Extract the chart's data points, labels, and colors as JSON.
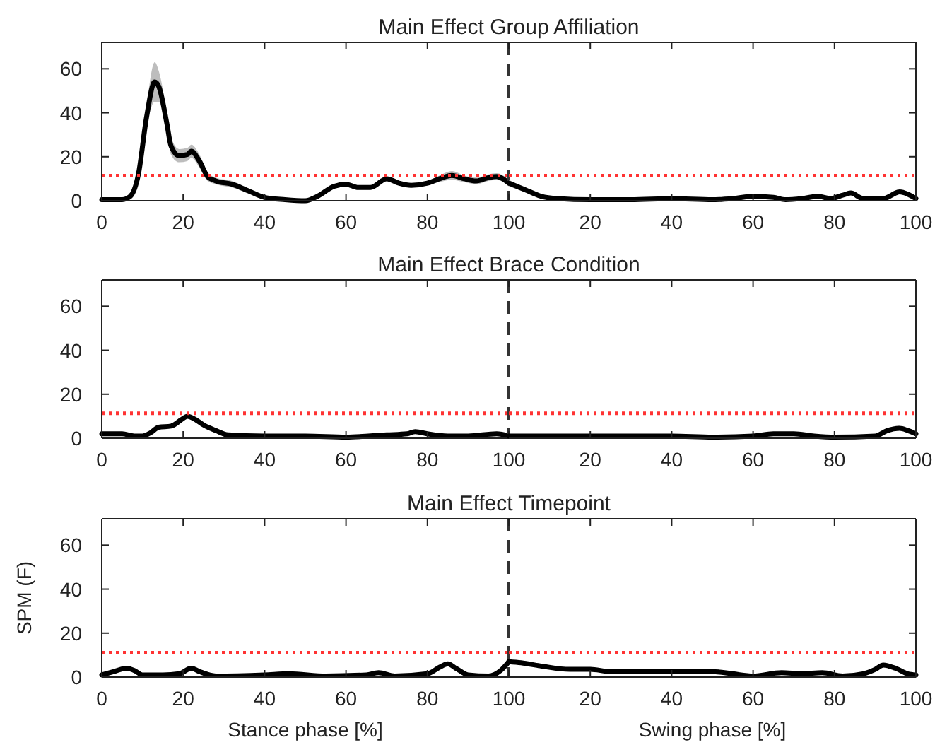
{
  "chart_data": [
    {
      "type": "line",
      "title": "Main Effect Group Affiliation",
      "xlim": [
        0,
        100
      ],
      "xticks": [
        0,
        20,
        40,
        60,
        80,
        100
      ],
      "ylim": [
        0,
        72
      ],
      "yticks": [
        0,
        20,
        40,
        60
      ],
      "ref_lines": [
        {
          "axis": "x",
          "value": 100,
          "color": "#333333",
          "line_style": "dashed"
        },
        {
          "axis": "y",
          "value": 11.4,
          "color": "#ff3333",
          "line_style": "dotted"
        }
      ],
      "series": [
        {
          "color": "#000000",
          "x": [
            0,
            5,
            7,
            9,
            11,
            13,
            14,
            16,
            17,
            19,
            21,
            22,
            24,
            26,
            28,
            32,
            36,
            40,
            45,
            50,
            53,
            57,
            60,
            63,
            66,
            70,
            73,
            76,
            80,
            83,
            86,
            89,
            92,
            95,
            97,
            100
          ],
          "values": [
            0.5,
            0.5,
            2,
            12,
            38,
            54,
            52,
            35,
            25,
            20.5,
            21,
            22.5,
            18,
            11,
            9,
            7.5,
            4.5,
            1.5,
            0.5,
            0,
            2,
            6.5,
            7.5,
            6,
            6,
            10,
            8,
            7,
            8,
            10,
            11.5,
            10,
            9,
            10.5,
            11,
            8
          ],
          "lower": [
            0.5,
            0.5,
            1.5,
            10,
            33,
            45,
            45,
            30,
            21,
            17.5,
            18,
            19.5,
            15,
            9,
            7.5,
            6,
            3.5,
            1,
            0.5,
            0,
            1.5,
            5.5,
            6.5,
            5,
            5,
            9,
            7,
            6,
            7,
            8.5,
            9.5,
            8.5,
            7.5,
            9,
            9.5,
            6.5
          ],
          "upper": [
            0.5,
            0.5,
            2.5,
            14,
            43,
            63,
            59,
            40,
            29,
            23.5,
            24,
            25.5,
            21,
            13,
            10.5,
            9,
            5.5,
            2,
            0.5,
            0,
            2.5,
            7.5,
            8.5,
            7,
            7,
            11,
            9,
            8,
            9,
            11.5,
            13.5,
            11.5,
            10.5,
            12,
            12.5,
            9.5
          ]
        }
      ]
    },
    {
      "type": "line",
      "tick_labels": "x",
      "xlim": [
        0,
        100
      ],
      "xticks": [
        20,
        40,
        60,
        80,
        100
      ],
      "ylim": [
        0,
        72
      ],
      "yticks": [
        0,
        20,
        40,
        60
      ],
      "ref_lines": [
        {
          "axis": "y",
          "value": 11.4,
          "color": "#ff3333",
          "line_style": "dotted"
        }
      ],
      "series": [
        {
          "color": "#000000",
          "x": [
            0,
            4,
            8,
            12,
            20,
            30,
            40,
            50,
            55,
            60,
            65,
            68,
            72,
            76,
            79,
            82,
            84,
            87,
            92,
            96,
            98,
            100
          ],
          "values": [
            8,
            5,
            2,
            1,
            0.5,
            0.5,
            1,
            0.5,
            1,
            2,
            1.5,
            0.5,
            1,
            2,
            1,
            2.5,
            3.5,
            1,
            1,
            4,
            3,
            1
          ],
          "lower": [
            6.5,
            4,
            1.5,
            0.5,
            0.5,
            0.5,
            1,
            0.5,
            0.5,
            1.5,
            1,
            0.5,
            0.5,
            1.5,
            0.5,
            2,
            3,
            0.5,
            1,
            3,
            2,
            0.5
          ],
          "upper": [
            9.5,
            6,
            2.5,
            1.5,
            0.5,
            0.5,
            1,
            0.5,
            1.5,
            2.5,
            2,
            0.5,
            1.5,
            2.5,
            1.5,
            3,
            4,
            1.5,
            1,
            5,
            4,
            1.5
          ]
        }
      ]
    },
    {
      "type": "line",
      "title": "Main Effect Brace Condition",
      "xlim": [
        0,
        100
      ],
      "xticks": [
        0,
        20,
        40,
        60,
        80,
        100
      ],
      "ylim": [
        0,
        72
      ],
      "yticks": [
        0,
        20,
        40,
        60
      ],
      "ref_lines": [
        {
          "axis": "x",
          "value": 100,
          "color": "#333333",
          "line_style": "dashed"
        },
        {
          "axis": "y",
          "value": 11.3,
          "color": "#ff3333",
          "line_style": "dotted"
        }
      ],
      "series": [
        {
          "color": "#000000",
          "x": [
            0,
            5,
            8,
            10,
            12,
            14,
            17,
            20,
            21,
            23,
            25,
            28,
            31,
            40,
            50,
            60,
            70,
            75,
            77,
            80,
            85,
            90,
            97,
            100
          ],
          "values": [
            2,
            2,
            1,
            1,
            2.5,
            5,
            5.5,
            9,
            10,
            8.5,
            6,
            3.5,
            1.5,
            1,
            1,
            0.5,
            1.5,
            2,
            3,
            2,
            1,
            1,
            2,
            1
          ]
        }
      ]
    },
    {
      "type": "line",
      "tick_labels": "x",
      "xlim": [
        0,
        100
      ],
      "xticks": [
        20,
        40,
        60,
        80,
        100
      ],
      "ylim": [
        0,
        72
      ],
      "yticks": [
        0,
        20,
        40,
        60
      ],
      "ref_lines": [
        {
          "axis": "y",
          "value": 11.3,
          "color": "#ff3333",
          "line_style": "dotted"
        }
      ],
      "series": [
        {
          "color": "#000000",
          "x": [
            0,
            10,
            20,
            30,
            40,
            50,
            60,
            65,
            70,
            75,
            80,
            90,
            93,
            96,
            98,
            100
          ],
          "values": [
            1,
            1,
            1,
            1,
            1,
            0.5,
            1,
            2,
            2,
            1,
            0.5,
            1,
            3.5,
            4.5,
            3.5,
            2
          ]
        }
      ]
    },
    {
      "type": "line",
      "title": "Main Effect Timepoint",
      "xlabel": "Stance phase [%]",
      "ylabel": "SPM (F)",
      "xlim": [
        0,
        100
      ],
      "xticks": [
        0,
        20,
        40,
        60,
        80,
        100
      ],
      "ylim": [
        0,
        72
      ],
      "yticks": [
        0,
        20,
        40,
        60
      ],
      "ref_lines": [
        {
          "axis": "x",
          "value": 100,
          "color": "#333333",
          "line_style": "dashed"
        },
        {
          "axis": "y",
          "value": 11.1,
          "color": "#ff3333",
          "line_style": "dotted"
        }
      ],
      "series": [
        {
          "color": "#000000",
          "x": [
            0,
            3,
            6,
            8,
            10,
            15,
            19,
            22,
            24,
            28,
            40,
            46,
            55,
            65,
            68,
            72,
            80,
            83,
            85,
            87,
            90,
            95,
            98,
            100
          ],
          "values": [
            1,
            2.5,
            4,
            3,
            1,
            1,
            1.5,
            4,
            2.5,
            0.5,
            1,
            1.5,
            0.5,
            1,
            2,
            0.5,
            1.5,
            4.5,
            6,
            4,
            1,
            0.5,
            3,
            7
          ]
        }
      ]
    },
    {
      "type": "line",
      "xlabel": "Swing phase [%]",
      "tick_labels": "x",
      "xlim": [
        0,
        100
      ],
      "xticks": [
        20,
        40,
        60,
        80,
        100
      ],
      "ylim": [
        0,
        72
      ],
      "yticks": [
        0,
        20,
        40,
        60
      ],
      "ref_lines": [
        {
          "axis": "y",
          "value": 11.1,
          "color": "#ff3333",
          "line_style": "dotted"
        }
      ],
      "series": [
        {
          "color": "#000000",
          "x": [
            0,
            3,
            8,
            15,
            20,
            25,
            30,
            40,
            50,
            55,
            60,
            67,
            72,
            77,
            82,
            87,
            90,
            92,
            95,
            98,
            100
          ],
          "values": [
            7,
            6.5,
            5,
            3.5,
            3.5,
            2.5,
            2.5,
            2.5,
            2.5,
            1.5,
            0.5,
            2,
            1.5,
            2,
            0.5,
            1.5,
            3.5,
            5.5,
            4,
            1.5,
            1
          ]
        }
      ]
    }
  ]
}
